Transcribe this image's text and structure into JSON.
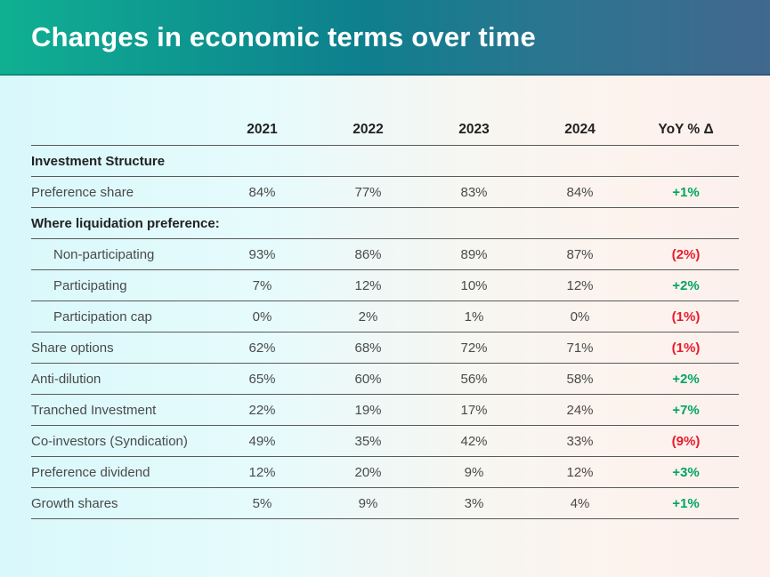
{
  "banner": {
    "title": "Changes in economic terms over time"
  },
  "theme": {
    "banner_left": "#0FB092",
    "banner_mid": "#0E7F8E",
    "banner_right": "#41688F",
    "bg_left": "#D9F8FB",
    "bg_mid": "#F6F6F2",
    "bg_right": "#FCEFEC",
    "positive": "#00A562",
    "negative": "#E81C2E",
    "line": "#5A5A5A",
    "text": "#4A4A4A",
    "heading": "#222222"
  },
  "table": {
    "columns": [
      "2021",
      "2022",
      "2023",
      "2024",
      "YoY % Δ"
    ],
    "rows": [
      {
        "type": "section",
        "label": "Investment Structure"
      },
      {
        "type": "data",
        "label": "Preference share",
        "values": [
          "84%",
          "77%",
          "83%",
          "84%"
        ],
        "yoy": "+1%",
        "trend": "positive"
      },
      {
        "type": "section",
        "label": "Where liquidation preference:"
      },
      {
        "type": "data",
        "label": "Non-participating",
        "indent": true,
        "values": [
          "93%",
          "86%",
          "89%",
          "87%"
        ],
        "yoy": "(2%)",
        "trend": "negative"
      },
      {
        "type": "data",
        "label": "Participating",
        "indent": true,
        "values": [
          "7%",
          "12%",
          "10%",
          "12%"
        ],
        "yoy": "+2%",
        "trend": "positive"
      },
      {
        "type": "data",
        "label": "Participation cap",
        "indent": true,
        "values": [
          "0%",
          "2%",
          "1%",
          "0%"
        ],
        "yoy": "(1%)",
        "trend": "negative"
      },
      {
        "type": "data",
        "label": "Share options",
        "values": [
          "62%",
          "68%",
          "72%",
          "71%"
        ],
        "yoy": "(1%)",
        "trend": "negative"
      },
      {
        "type": "data",
        "label": "Anti-dilution",
        "values": [
          "65%",
          "60%",
          "56%",
          "58%"
        ],
        "yoy": "+2%",
        "trend": "positive"
      },
      {
        "type": "data",
        "label": "Tranched Investment",
        "values": [
          "22%",
          "19%",
          "17%",
          "24%"
        ],
        "yoy": "+7%",
        "trend": "positive"
      },
      {
        "type": "data",
        "label": "Co-investors (Syndication)",
        "values": [
          "49%",
          "35%",
          "42%",
          "33%"
        ],
        "yoy": "(9%)",
        "trend": "negative"
      },
      {
        "type": "data",
        "label": "Preference dividend",
        "values": [
          "12%",
          "20%",
          "9%",
          "12%"
        ],
        "yoy": "+3%",
        "trend": "positive"
      },
      {
        "type": "data",
        "label": "Growth shares",
        "values": [
          "5%",
          "9%",
          "3%",
          "4%"
        ],
        "yoy": "+1%",
        "trend": "positive"
      }
    ]
  },
  "chart_data": {
    "type": "table",
    "title": "Changes in economic terms over time",
    "columns": [
      "2021",
      "2022",
      "2023",
      "2024",
      "YoY % Δ"
    ],
    "rows": [
      {
        "label": "Preference share",
        "values": [
          84,
          77,
          83,
          84
        ],
        "yoy_pct": 1
      },
      {
        "label": "Non-participating",
        "values": [
          93,
          86,
          89,
          87
        ],
        "yoy_pct": -2
      },
      {
        "label": "Participating",
        "values": [
          7,
          12,
          10,
          12
        ],
        "yoy_pct": 2
      },
      {
        "label": "Participation cap",
        "values": [
          0,
          2,
          1,
          0
        ],
        "yoy_pct": -1
      },
      {
        "label": "Share options",
        "values": [
          62,
          68,
          72,
          71
        ],
        "yoy_pct": -1
      },
      {
        "label": "Anti-dilution",
        "values": [
          65,
          60,
          56,
          58
        ],
        "yoy_pct": 2
      },
      {
        "label": "Tranched Investment",
        "values": [
          22,
          19,
          17,
          24
        ],
        "yoy_pct": 7
      },
      {
        "label": "Co-investors (Syndication)",
        "values": [
          49,
          35,
          42,
          33
        ],
        "yoy_pct": -9
      },
      {
        "label": "Preference dividend",
        "values": [
          12,
          20,
          9,
          12
        ],
        "yoy_pct": 3
      },
      {
        "label": "Growth shares",
        "values": [
          5,
          9,
          3,
          4
        ],
        "yoy_pct": 1
      }
    ]
  }
}
